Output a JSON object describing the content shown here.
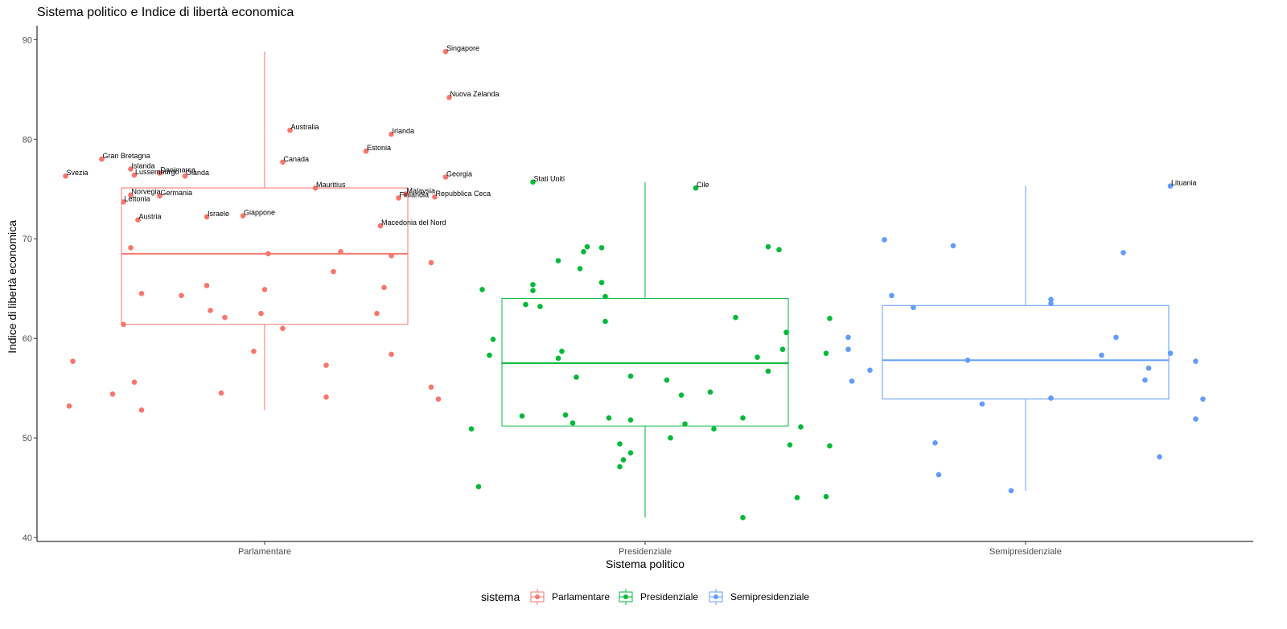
{
  "chart_data": {
    "type": "boxplot",
    "title": "Sistema politico e Indice di libertà economica",
    "xlabel": "Sistema politico",
    "ylabel": "Indice di libertà economica",
    "ylim": [
      39.6,
      91.4
    ],
    "yticks": [
      40,
      50,
      60,
      70,
      80,
      90
    ],
    "categories": [
      "Parlamentare",
      "Presidenziale",
      "Semipresidenziale"
    ],
    "colors": {
      "Parlamentare": "#F8766D",
      "Presidenziale": "#00BA38",
      "Semipresidenziale": "#619CFF"
    },
    "legend": {
      "title": "sistema",
      "entries": [
        "Parlamentare",
        "Presidenziale",
        "Semipresidenziale"
      ],
      "position": "bottom"
    },
    "boxes": [
      {
        "category": "Parlamentare",
        "min": 52.8,
        "q1": 61.4,
        "median": 68.5,
        "q3": 75.1,
        "max": 88.8
      },
      {
        "category": "Presidenziale",
        "min": 42.0,
        "q1": 51.2,
        "median": 57.5,
        "q3": 64.0,
        "max": 75.7
      },
      {
        "category": "Semipresidenziale",
        "min": 44.7,
        "q1": 53.9,
        "median": 57.8,
        "q3": 63.3,
        "max": 75.3
      }
    ],
    "points": [
      {
        "category": "Parlamentare",
        "jitter": 0.5,
        "y": 88.8,
        "label": "Singapore"
      },
      {
        "category": "Parlamentare",
        "jitter": 0.51,
        "y": 84.2,
        "label": "Nuova Zelanda"
      },
      {
        "category": "Parlamentare",
        "jitter": 0.07,
        "y": 80.9,
        "label": "Australia"
      },
      {
        "category": "Parlamentare",
        "jitter": 0.35,
        "y": 80.5,
        "label": "Irlanda"
      },
      {
        "category": "Parlamentare",
        "jitter": 0.28,
        "y": 78.8,
        "label": "Estonia"
      },
      {
        "category": "Parlamentare",
        "jitter": -0.45,
        "y": 78.0,
        "label": "Gran Bretagna"
      },
      {
        "category": "Parlamentare",
        "jitter": 0.05,
        "y": 77.7,
        "label": "Canada"
      },
      {
        "category": "Parlamentare",
        "jitter": -0.37,
        "y": 77.0,
        "label": "Islanda"
      },
      {
        "category": "Parlamentare",
        "jitter": -0.29,
        "y": 76.6,
        "label": "Danimarca"
      },
      {
        "category": "Parlamentare",
        "jitter": -0.36,
        "y": 76.4,
        "label": "Lussemburgo"
      },
      {
        "category": "Parlamentare",
        "jitter": -0.55,
        "y": 76.3,
        "label": "Svezia"
      },
      {
        "category": "Parlamentare",
        "jitter": -0.22,
        "y": 76.3,
        "label": "Olanda"
      },
      {
        "category": "Parlamentare",
        "jitter": 0.5,
        "y": 76.2,
        "label": "Georgia"
      },
      {
        "category": "Parlamentare",
        "jitter": 0.14,
        "y": 75.1,
        "label": "Mauritius"
      },
      {
        "category": "Parlamentare",
        "jitter": 0.39,
        "y": 74.5,
        "label": "Malaysia"
      },
      {
        "category": "Parlamentare",
        "jitter": -0.37,
        "y": 74.4,
        "label": "Norvegia"
      },
      {
        "category": "Parlamentare",
        "jitter": -0.29,
        "y": 74.3,
        "label": "Germania"
      },
      {
        "category": "Parlamentare",
        "jitter": 0.47,
        "y": 74.2,
        "label": "Repubblica Ceca"
      },
      {
        "category": "Parlamentare",
        "jitter": 0.37,
        "y": 74.1,
        "label": "Finlandia"
      },
      {
        "category": "Parlamentare",
        "jitter": -0.39,
        "y": 73.7,
        "label": "Lettonia"
      },
      {
        "category": "Parlamentare",
        "jitter": -0.06,
        "y": 72.3,
        "label": "Giappone"
      },
      {
        "category": "Parlamentare",
        "jitter": -0.16,
        "y": 72.2,
        "label": "Israele"
      },
      {
        "category": "Parlamentare",
        "jitter": -0.35,
        "y": 71.9,
        "label": "Austria"
      },
      {
        "category": "Parlamentare",
        "jitter": 0.32,
        "y": 71.3,
        "label": "Macedonia del Nord"
      },
      {
        "category": "Parlamentare",
        "jitter": -0.37,
        "y": 69.1
      },
      {
        "category": "Parlamentare",
        "jitter": 0.21,
        "y": 68.7
      },
      {
        "category": "Parlamentare",
        "jitter": 0.01,
        "y": 68.5
      },
      {
        "category": "Parlamentare",
        "jitter": 0.35,
        "y": 68.3
      },
      {
        "category": "Parlamentare",
        "jitter": 0.46,
        "y": 67.6
      },
      {
        "category": "Parlamentare",
        "jitter": 0.19,
        "y": 66.7
      },
      {
        "category": "Parlamentare",
        "jitter": -0.16,
        "y": 65.3
      },
      {
        "category": "Parlamentare",
        "jitter": 0.33,
        "y": 65.1
      },
      {
        "category": "Parlamentare",
        "jitter": 0.0,
        "y": 64.9
      },
      {
        "category": "Parlamentare",
        "jitter": -0.34,
        "y": 64.5
      },
      {
        "category": "Parlamentare",
        "jitter": -0.23,
        "y": 64.3
      },
      {
        "category": "Parlamentare",
        "jitter": -0.15,
        "y": 62.8
      },
      {
        "category": "Parlamentare",
        "jitter": -0.01,
        "y": 62.5
      },
      {
        "category": "Parlamentare",
        "jitter": 0.31,
        "y": 62.5
      },
      {
        "category": "Parlamentare",
        "jitter": -0.11,
        "y": 62.1
      },
      {
        "category": "Parlamentare",
        "jitter": -0.39,
        "y": 61.4
      },
      {
        "category": "Parlamentare",
        "jitter": 0.05,
        "y": 61.0
      },
      {
        "category": "Parlamentare",
        "jitter": -0.03,
        "y": 58.7
      },
      {
        "category": "Parlamentare",
        "jitter": 0.35,
        "y": 58.4
      },
      {
        "category": "Parlamentare",
        "jitter": -0.53,
        "y": 57.7
      },
      {
        "category": "Parlamentare",
        "jitter": 0.17,
        "y": 57.3
      },
      {
        "category": "Parlamentare",
        "jitter": -0.36,
        "y": 55.6
      },
      {
        "category": "Parlamentare",
        "jitter": 0.46,
        "y": 55.1
      },
      {
        "category": "Parlamentare",
        "jitter": -0.42,
        "y": 54.4
      },
      {
        "category": "Parlamentare",
        "jitter": -0.12,
        "y": 54.5
      },
      {
        "category": "Parlamentare",
        "jitter": 0.17,
        "y": 54.1
      },
      {
        "category": "Parlamentare",
        "jitter": 0.48,
        "y": 53.9
      },
      {
        "category": "Parlamentare",
        "jitter": -0.54,
        "y": 53.2
      },
      {
        "category": "Parlamentare",
        "jitter": -0.34,
        "y": 52.8
      },
      {
        "category": "Presidenziale",
        "jitter": -0.31,
        "y": 75.7,
        "label": "Stati Uniti"
      },
      {
        "category": "Presidenziale",
        "jitter": 0.14,
        "y": 75.1,
        "label": "Cile"
      },
      {
        "category": "Presidenziale",
        "jitter": -0.16,
        "y": 69.2
      },
      {
        "category": "Presidenziale",
        "jitter": -0.12,
        "y": 69.1
      },
      {
        "category": "Presidenziale",
        "jitter": 0.34,
        "y": 69.2
      },
      {
        "category": "Presidenziale",
        "jitter": 0.37,
        "y": 68.9
      },
      {
        "category": "Presidenziale",
        "jitter": -0.17,
        "y": 68.7
      },
      {
        "category": "Presidenziale",
        "jitter": -0.24,
        "y": 67.8
      },
      {
        "category": "Presidenziale",
        "jitter": -0.18,
        "y": 67.0
      },
      {
        "category": "Presidenziale",
        "jitter": -0.12,
        "y": 65.6
      },
      {
        "category": "Presidenziale",
        "jitter": -0.31,
        "y": 65.4
      },
      {
        "category": "Presidenziale",
        "jitter": -0.45,
        "y": 64.9
      },
      {
        "category": "Presidenziale",
        "jitter": -0.31,
        "y": 64.8
      },
      {
        "category": "Presidenziale",
        "jitter": -0.11,
        "y": 64.2
      },
      {
        "category": "Presidenziale",
        "jitter": -0.33,
        "y": 63.4
      },
      {
        "category": "Presidenziale",
        "jitter": -0.29,
        "y": 63.2
      },
      {
        "category": "Presidenziale",
        "jitter": 0.25,
        "y": 62.1
      },
      {
        "category": "Presidenziale",
        "jitter": 0.51,
        "y": 62.0
      },
      {
        "category": "Presidenziale",
        "jitter": -0.11,
        "y": 61.7
      },
      {
        "category": "Presidenziale",
        "jitter": 0.39,
        "y": 60.6
      },
      {
        "category": "Presidenziale",
        "jitter": -0.42,
        "y": 59.9
      },
      {
        "category": "Presidenziale",
        "jitter": 0.38,
        "y": 58.9
      },
      {
        "category": "Presidenziale",
        "jitter": -0.23,
        "y": 58.7
      },
      {
        "category": "Presidenziale",
        "jitter": 0.5,
        "y": 58.5
      },
      {
        "category": "Presidenziale",
        "jitter": -0.43,
        "y": 58.3
      },
      {
        "category": "Presidenziale",
        "jitter": 0.31,
        "y": 58.1
      },
      {
        "category": "Presidenziale",
        "jitter": -0.24,
        "y": 58.0
      },
      {
        "category": "Presidenziale",
        "jitter": 0.34,
        "y": 56.7
      },
      {
        "category": "Presidenziale",
        "jitter": -0.04,
        "y": 56.2
      },
      {
        "category": "Presidenziale",
        "jitter": -0.19,
        "y": 56.1
      },
      {
        "category": "Presidenziale",
        "jitter": 0.06,
        "y": 55.8
      },
      {
        "category": "Presidenziale",
        "jitter": 0.18,
        "y": 54.6
      },
      {
        "category": "Presidenziale",
        "jitter": 0.1,
        "y": 54.3
      },
      {
        "category": "Presidenziale",
        "jitter": -0.34,
        "y": 52.2
      },
      {
        "category": "Presidenziale",
        "jitter": -0.22,
        "y": 52.3
      },
      {
        "category": "Presidenziale",
        "jitter": -0.1,
        "y": 52.0
      },
      {
        "category": "Presidenziale",
        "jitter": 0.27,
        "y": 52.0
      },
      {
        "category": "Presidenziale",
        "jitter": -0.04,
        "y": 51.8
      },
      {
        "category": "Presidenziale",
        "jitter": -0.2,
        "y": 51.5
      },
      {
        "category": "Presidenziale",
        "jitter": 0.11,
        "y": 51.4
      },
      {
        "category": "Presidenziale",
        "jitter": 0.43,
        "y": 51.1
      },
      {
        "category": "Presidenziale",
        "jitter": 0.19,
        "y": 50.9
      },
      {
        "category": "Presidenziale",
        "jitter": -0.48,
        "y": 50.9
      },
      {
        "category": "Presidenziale",
        "jitter": 0.07,
        "y": 50.0
      },
      {
        "category": "Presidenziale",
        "jitter": -0.07,
        "y": 49.4
      },
      {
        "category": "Presidenziale",
        "jitter": 0.4,
        "y": 49.3
      },
      {
        "category": "Presidenziale",
        "jitter": 0.51,
        "y": 49.2
      },
      {
        "category": "Presidenziale",
        "jitter": -0.04,
        "y": 48.5
      },
      {
        "category": "Presidenziale",
        "jitter": -0.06,
        "y": 47.8
      },
      {
        "category": "Presidenziale",
        "jitter": -0.07,
        "y": 47.1
      },
      {
        "category": "Presidenziale",
        "jitter": -0.46,
        "y": 45.1
      },
      {
        "category": "Presidenziale",
        "jitter": 0.42,
        "y": 44.0
      },
      {
        "category": "Presidenziale",
        "jitter": 0.5,
        "y": 44.1
      },
      {
        "category": "Presidenziale",
        "jitter": 0.27,
        "y": 42.0
      },
      {
        "category": "Semipresidenziale",
        "jitter": 0.4,
        "y": 75.3,
        "label": "Lituania"
      },
      {
        "category": "Semipresidenziale",
        "jitter": -0.39,
        "y": 69.9
      },
      {
        "category": "Semipresidenziale",
        "jitter": -0.2,
        "y": 69.3
      },
      {
        "category": "Semipresidenziale",
        "jitter": 0.27,
        "y": 68.6
      },
      {
        "category": "Semipresidenziale",
        "jitter": -0.37,
        "y": 64.3
      },
      {
        "category": "Semipresidenziale",
        "jitter": 0.07,
        "y": 63.9
      },
      {
        "category": "Semipresidenziale",
        "jitter": 0.07,
        "y": 63.5
      },
      {
        "category": "Semipresidenziale",
        "jitter": -0.31,
        "y": 63.1
      },
      {
        "category": "Semipresidenziale",
        "jitter": 0.25,
        "y": 60.1
      },
      {
        "category": "Semipresidenziale",
        "jitter": -0.49,
        "y": 60.1
      },
      {
        "category": "Semipresidenziale",
        "jitter": -0.49,
        "y": 58.9
      },
      {
        "category": "Semipresidenziale",
        "jitter": 0.4,
        "y": 58.5
      },
      {
        "category": "Semipresidenziale",
        "jitter": 0.21,
        "y": 58.3
      },
      {
        "category": "Semipresidenziale",
        "jitter": -0.16,
        "y": 57.8
      },
      {
        "category": "Semipresidenziale",
        "jitter": 0.47,
        "y": 57.7
      },
      {
        "category": "Semipresidenziale",
        "jitter": 0.34,
        "y": 57.0
      },
      {
        "category": "Semipresidenziale",
        "jitter": -0.43,
        "y": 56.8
      },
      {
        "category": "Semipresidenziale",
        "jitter": 0.33,
        "y": 55.8
      },
      {
        "category": "Semipresidenziale",
        "jitter": -0.48,
        "y": 55.7
      },
      {
        "category": "Semipresidenziale",
        "jitter": 0.07,
        "y": 54.0
      },
      {
        "category": "Semipresidenziale",
        "jitter": 0.49,
        "y": 53.9
      },
      {
        "category": "Semipresidenziale",
        "jitter": -0.12,
        "y": 53.4
      },
      {
        "category": "Semipresidenziale",
        "jitter": 0.47,
        "y": 51.9
      },
      {
        "category": "Semipresidenziale",
        "jitter": -0.25,
        "y": 49.5
      },
      {
        "category": "Semipresidenziale",
        "jitter": 0.37,
        "y": 48.1
      },
      {
        "category": "Semipresidenziale",
        "jitter": -0.24,
        "y": 46.3
      },
      {
        "category": "Semipresidenziale",
        "jitter": -0.04,
        "y": 44.7
      }
    ]
  }
}
